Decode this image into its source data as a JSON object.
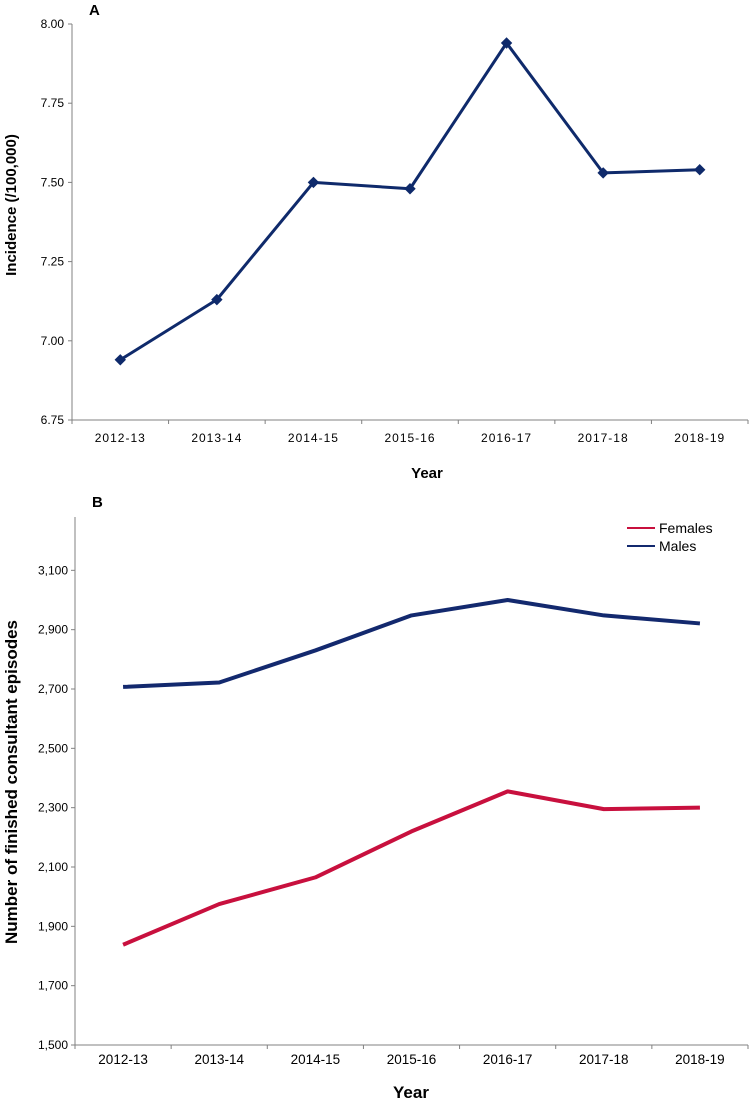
{
  "chart_data": [
    {
      "type": "line",
      "panel_label": "A",
      "title": "",
      "xlabel": "Year",
      "ylabel": "Incidence (/100,000)",
      "categories": [
        "2012-13",
        "2013-14",
        "2014-15",
        "2015-16",
        "2016-17",
        "2017-18",
        "2018-19"
      ],
      "ylim": [
        6.75,
        8.0
      ],
      "yticks": [
        "6.75",
        "7.00",
        "7.25",
        "7.50",
        "7.75",
        "8.00"
      ],
      "ytick_values": [
        6.75,
        7.0,
        7.25,
        7.5,
        7.75,
        8.0
      ],
      "grid": false,
      "series": [
        {
          "name": "Incidence",
          "color": "#0f2a6b",
          "marker": "diamond",
          "values": [
            6.94,
            7.13,
            7.5,
            7.48,
            7.94,
            7.53,
            7.54
          ]
        }
      ]
    },
    {
      "type": "line",
      "panel_label": "B",
      "title": "",
      "xlabel": "Year",
      "ylabel": "Number of finished consultant episodes",
      "categories": [
        "2012-13",
        "2013-14",
        "2014-15",
        "2015-16",
        "2016-17",
        "2017-18",
        "2018-19"
      ],
      "ylim": [
        1500,
        3300
      ],
      "yticks": [
        "1,500",
        "1,700",
        "1,900",
        "2,100",
        "2,300",
        "2,500",
        "2,700",
        "2,900",
        "3,100"
      ],
      "ytick_values": [
        1500,
        1700,
        1900,
        2100,
        2300,
        2500,
        2700,
        2900,
        3100
      ],
      "grid": false,
      "legend_position": "top-right",
      "series": [
        {
          "name": "Females",
          "color": "#c8103e",
          "values": [
            1838,
            1975,
            2065,
            2220,
            2355,
            2295,
            2300
          ]
        },
        {
          "name": "Males",
          "color": "#13296e",
          "values": [
            2707,
            2722,
            2830,
            2948,
            3000,
            2948,
            2921
          ]
        }
      ]
    }
  ]
}
